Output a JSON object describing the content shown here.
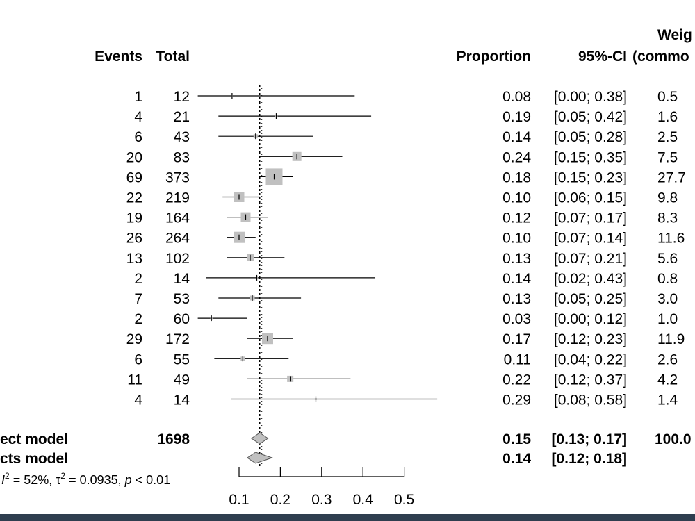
{
  "chart_data": {
    "type": "forest",
    "headers": {
      "events": "Events",
      "total": "Total",
      "proportion": "Proportion",
      "ci": "95%-CI",
      "weight_line1": "Weig",
      "weight_line2": "(commo"
    },
    "x_axis": {
      "ticks": [
        0.1,
        0.2,
        0.3,
        0.4,
        0.5
      ],
      "tick_labels": [
        "0.1",
        "0.2",
        "0.3",
        "0.4",
        "0.5"
      ],
      "xlim": [
        0.1,
        0.5
      ]
    },
    "reference_line": 0.15,
    "studies": [
      {
        "events": "1",
        "total": "12",
        "proportion": "0.08",
        "ci": "[0.00; 0.38]",
        "weight": "0.5",
        "est": 0.083,
        "lo": 0.0,
        "hi": 0.38,
        "box": 2
      },
      {
        "events": "4",
        "total": "21",
        "proportion": "0.19",
        "ci": "[0.05; 0.42]",
        "weight": "1.6",
        "est": 0.19,
        "lo": 0.05,
        "hi": 0.42,
        "box": 4
      },
      {
        "events": "6",
        "total": "43",
        "proportion": "0.14",
        "ci": "[0.05; 0.28]",
        "weight": "2.5",
        "est": 0.14,
        "lo": 0.05,
        "hi": 0.28,
        "box": 6
      },
      {
        "events": "20",
        "total": "83",
        "proportion": "0.24",
        "ci": "[0.15; 0.35]",
        "weight": "7.5",
        "est": 0.24,
        "lo": 0.15,
        "hi": 0.35,
        "box": 13
      },
      {
        "events": "69",
        "total": "373",
        "proportion": "0.18",
        "ci": "[0.15; 0.23]",
        "weight": "27.7",
        "est": 0.185,
        "lo": 0.15,
        "hi": 0.23,
        "box": 24
      },
      {
        "events": "22",
        "total": "219",
        "proportion": "0.10",
        "ci": "[0.06; 0.15]",
        "weight": "9.8",
        "est": 0.1,
        "lo": 0.06,
        "hi": 0.15,
        "box": 15
      },
      {
        "events": "19",
        "total": "164",
        "proportion": "0.12",
        "ci": "[0.07; 0.17]",
        "weight": "8.3",
        "est": 0.116,
        "lo": 0.07,
        "hi": 0.17,
        "box": 14
      },
      {
        "events": "26",
        "total": "264",
        "proportion": "0.10",
        "ci": "[0.07; 0.14]",
        "weight": "11.6",
        "est": 0.1,
        "lo": 0.07,
        "hi": 0.14,
        "box": 16
      },
      {
        "events": "13",
        "total": "102",
        "proportion": "0.13",
        "ci": "[0.07; 0.21]",
        "weight": "5.6",
        "est": 0.127,
        "lo": 0.07,
        "hi": 0.21,
        "box": 10
      },
      {
        "events": "2",
        "total": "14",
        "proportion": "0.14",
        "ci": "[0.02; 0.43]",
        "weight": "0.8",
        "est": 0.143,
        "lo": 0.02,
        "hi": 0.43,
        "box": 3
      },
      {
        "events": "7",
        "total": "53",
        "proportion": "0.13",
        "ci": "[0.05; 0.25]",
        "weight": "3.0",
        "est": 0.132,
        "lo": 0.05,
        "hi": 0.25,
        "box": 7
      },
      {
        "events": "2",
        "total": "60",
        "proportion": "0.03",
        "ci": "[0.00; 0.12]",
        "weight": "1.0",
        "est": 0.033,
        "lo": 0.0,
        "hi": 0.12,
        "box": 3
      },
      {
        "events": "29",
        "total": "172",
        "proportion": "0.17",
        "ci": "[0.12; 0.23]",
        "weight": "11.9",
        "est": 0.169,
        "lo": 0.12,
        "hi": 0.23,
        "box": 16
      },
      {
        "events": "6",
        "total": "55",
        "proportion": "0.11",
        "ci": "[0.04; 0.22]",
        "weight": "2.6",
        "est": 0.109,
        "lo": 0.04,
        "hi": 0.22,
        "box": 6
      },
      {
        "events": "11",
        "total": "49",
        "proportion": "0.22",
        "ci": "[0.12; 0.37]",
        "weight": "4.2",
        "est": 0.224,
        "lo": 0.12,
        "hi": 0.37,
        "box": 9
      },
      {
        "events": "4",
        "total": "14",
        "proportion": "0.29",
        "ci": "[0.08; 0.58]",
        "weight": "1.4",
        "est": 0.286,
        "lo": 0.08,
        "hi": 0.58,
        "box": 3
      }
    ],
    "pooled": [
      {
        "label": "ect model",
        "total": "1698",
        "proportion": "0.15",
        "ci": "[0.13; 0.17]",
        "weight": "100.0",
        "est": 0.15,
        "lo": 0.13,
        "hi": 0.17
      },
      {
        "label": "cts model",
        "total": "",
        "proportion": "0.14",
        "ci": "[0.12; 0.18]",
        "weight": "",
        "est": 0.14,
        "lo": 0.12,
        "hi": 0.18
      }
    ],
    "heterogeneity": {
      "i2_symbol": "I",
      "i2_sup": "2",
      "i2_value": " = 52%, ",
      "tau_symbol": "τ",
      "tau_sup": "2",
      "tau_value": " = 0.0935, ",
      "p_symbol": "p",
      "p_value": " < 0.01"
    }
  }
}
